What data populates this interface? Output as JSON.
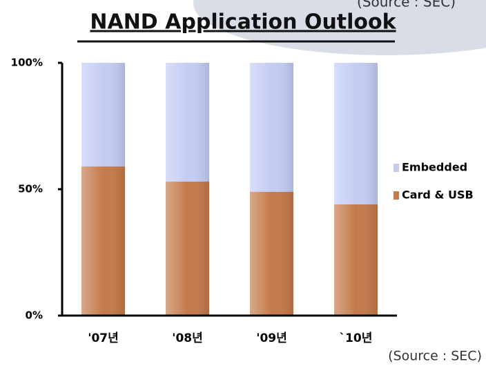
{
  "chart_data": {
    "type": "stacked_bar",
    "title": "NAND Application Outlook",
    "source": "(Source : SEC)",
    "categories": [
      "'07년",
      "'08년",
      "'09년",
      "`10년"
    ],
    "series": [
      {
        "name": "Card & USB",
        "color": "#c47a4a",
        "values": [
          59,
          53,
          49,
          44
        ]
      },
      {
        "name": "Embedded",
        "color": "#c4ccf4",
        "values": [
          41,
          47,
          51,
          56
        ]
      }
    ],
    "ylim": [
      0,
      100
    ],
    "yticks": [
      {
        "value": 0,
        "label": "0%"
      },
      {
        "value": 50,
        "label": "50%"
      },
      {
        "value": 100,
        "label": "100%"
      }
    ],
    "legend": "right"
  }
}
